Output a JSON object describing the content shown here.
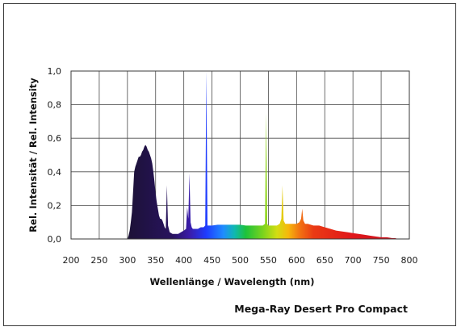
{
  "chart_data": {
    "type": "area",
    "title": "Mega-Ray Desert Pro Compact",
    "xlabel": "Wellenlänge / Wavelength (nm)",
    "ylabel": "Rel. Intensität / Rel. Intensity",
    "xlim": [
      200,
      800
    ],
    "ylim": [
      0,
      1.0
    ],
    "x_ticks": [
      "200",
      "250",
      "300",
      "350",
      "400",
      "450",
      "500",
      "550",
      "600",
      "650",
      "700",
      "750",
      "800"
    ],
    "y_ticks": [
      "0,0",
      "0,2",
      "0,4",
      "0,6",
      "0,8",
      "1,0"
    ],
    "grid": true,
    "fill": "spectral-color-gradient",
    "series": [
      {
        "x": [
          300,
          302,
          304,
          306,
          308,
          310,
          312,
          314,
          316,
          318,
          320,
          322,
          324,
          326,
          328,
          330,
          332,
          334,
          336,
          338,
          340,
          342,
          344,
          346,
          348,
          350,
          352,
          354,
          356,
          358,
          360,
          362,
          364,
          366,
          368,
          370,
          372,
          375,
          380,
          385,
          390,
          395,
          400,
          404,
          406,
          408,
          410,
          412,
          414,
          416,
          420,
          425,
          430,
          435,
          438,
          440,
          442,
          445,
          450,
          460,
          470,
          480,
          490,
          500,
          510,
          520,
          530,
          540,
          544,
          546,
          548,
          550,
          555,
          560,
          565,
          570,
          573,
          575,
          577,
          580,
          585,
          590,
          595,
          600,
          605,
          608,
          610,
          612,
          615,
          620,
          630,
          640,
          650,
          660,
          670,
          680,
          690,
          700,
          710,
          720,
          730,
          740,
          750,
          760,
          770,
          775,
          780
        ],
        "y": [
          0.0,
          0.02,
          0.05,
          0.1,
          0.16,
          0.28,
          0.4,
          0.43,
          0.45,
          0.47,
          0.49,
          0.49,
          0.5,
          0.52,
          0.53,
          0.55,
          0.56,
          0.55,
          0.53,
          0.52,
          0.5,
          0.48,
          0.45,
          0.4,
          0.34,
          0.27,
          0.22,
          0.18,
          0.14,
          0.12,
          0.12,
          0.11,
          0.09,
          0.07,
          0.06,
          0.32,
          0.08,
          0.04,
          0.03,
          0.03,
          0.03,
          0.04,
          0.05,
          0.06,
          0.19,
          0.12,
          0.39,
          0.1,
          0.07,
          0.06,
          0.06,
          0.06,
          0.07,
          0.07,
          0.08,
          1.0,
          0.08,
          0.08,
          0.08,
          0.085,
          0.085,
          0.085,
          0.085,
          0.085,
          0.08,
          0.08,
          0.08,
          0.08,
          0.09,
          0.75,
          0.09,
          0.08,
          0.08,
          0.08,
          0.08,
          0.09,
          0.12,
          0.32,
          0.11,
          0.09,
          0.09,
          0.09,
          0.09,
          0.09,
          0.1,
          0.12,
          0.18,
          0.11,
          0.09,
          0.09,
          0.08,
          0.08,
          0.07,
          0.06,
          0.05,
          0.045,
          0.04,
          0.035,
          0.03,
          0.025,
          0.02,
          0.015,
          0.01,
          0.01,
          0.005,
          0.005,
          0.0
        ]
      }
    ]
  }
}
